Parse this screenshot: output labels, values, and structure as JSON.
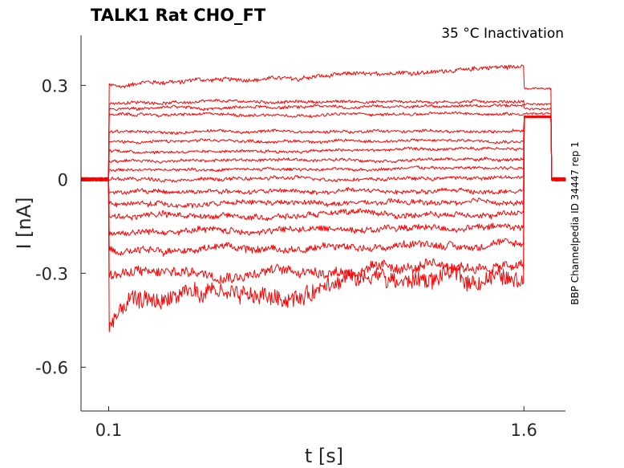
{
  "chart_data": {
    "type": "line",
    "title": "TALK1  Rat  CHO_FT",
    "annotation": "35 °C  Inactivation",
    "side_label": "BBP Channelpedia ID 34447 rep 1",
    "xlabel": "t [s]",
    "ylabel": "I [nA]",
    "xlim": [
      0.0,
      1.75
    ],
    "ylim": [
      -0.74,
      0.46
    ],
    "x_ticks": [
      {
        "value": 0.1,
        "label": "0.1"
      },
      {
        "value": 1.6,
        "label": "1.6"
      }
    ],
    "y_ticks": [
      {
        "value": 0.3,
        "label": "0.3"
      },
      {
        "value": 0.0,
        "label": "0"
      },
      {
        "value": -0.3,
        "label": "-0.3"
      },
      {
        "value": -0.6,
        "label": "-0.6"
      }
    ],
    "grid": false,
    "color": "#ff0000",
    "protocol": {
      "step_start": 0.1,
      "step_end": 1.6,
      "post_end": 1.7
    },
    "series": [
      {
        "level": 0.3,
        "end": 0.36,
        "tail": 0.29,
        "noise": 0.006
      },
      {
        "level": 0.245,
        "end": 0.25,
        "tail": 0.24,
        "noise": 0.004
      },
      {
        "level": 0.225,
        "end": 0.235,
        "tail": 0.225,
        "noise": 0.004
      },
      {
        "level": 0.205,
        "end": 0.21,
        "tail": 0.21,
        "noise": 0.004
      },
      {
        "level": 0.15,
        "end": 0.155,
        "tail": 0.2,
        "noise": 0.004
      },
      {
        "level": 0.12,
        "end": 0.125,
        "tail": 0.2,
        "noise": 0.004
      },
      {
        "level": 0.09,
        "end": 0.095,
        "tail": 0.2,
        "noise": 0.004
      },
      {
        "level": 0.06,
        "end": 0.065,
        "tail": 0.2,
        "noise": 0.004
      },
      {
        "level": 0.03,
        "end": 0.035,
        "tail": 0.2,
        "noise": 0.004
      },
      {
        "level": 0.0,
        "end": 0.005,
        "tail": 0.2,
        "noise": 0.005
      },
      {
        "level": -0.04,
        "end": -0.035,
        "tail": 0.2,
        "noise": 0.006
      },
      {
        "level": -0.08,
        "end": -0.075,
        "tail": 0.2,
        "noise": 0.007
      },
      {
        "level": -0.12,
        "end": -0.11,
        "tail": 0.2,
        "noise": 0.008
      },
      {
        "level": -0.17,
        "end": -0.15,
        "tail": 0.2,
        "noise": 0.009
      },
      {
        "level": -0.22,
        "end": -0.21,
        "tail": 0.2,
        "noise": 0.01
      },
      {
        "level": -0.3,
        "end": -0.28,
        "tail": 0.2,
        "noise": 0.015
      },
      {
        "level": -0.41,
        "end": -0.3,
        "tail": 0.2,
        "noise": 0.025
      }
    ]
  }
}
